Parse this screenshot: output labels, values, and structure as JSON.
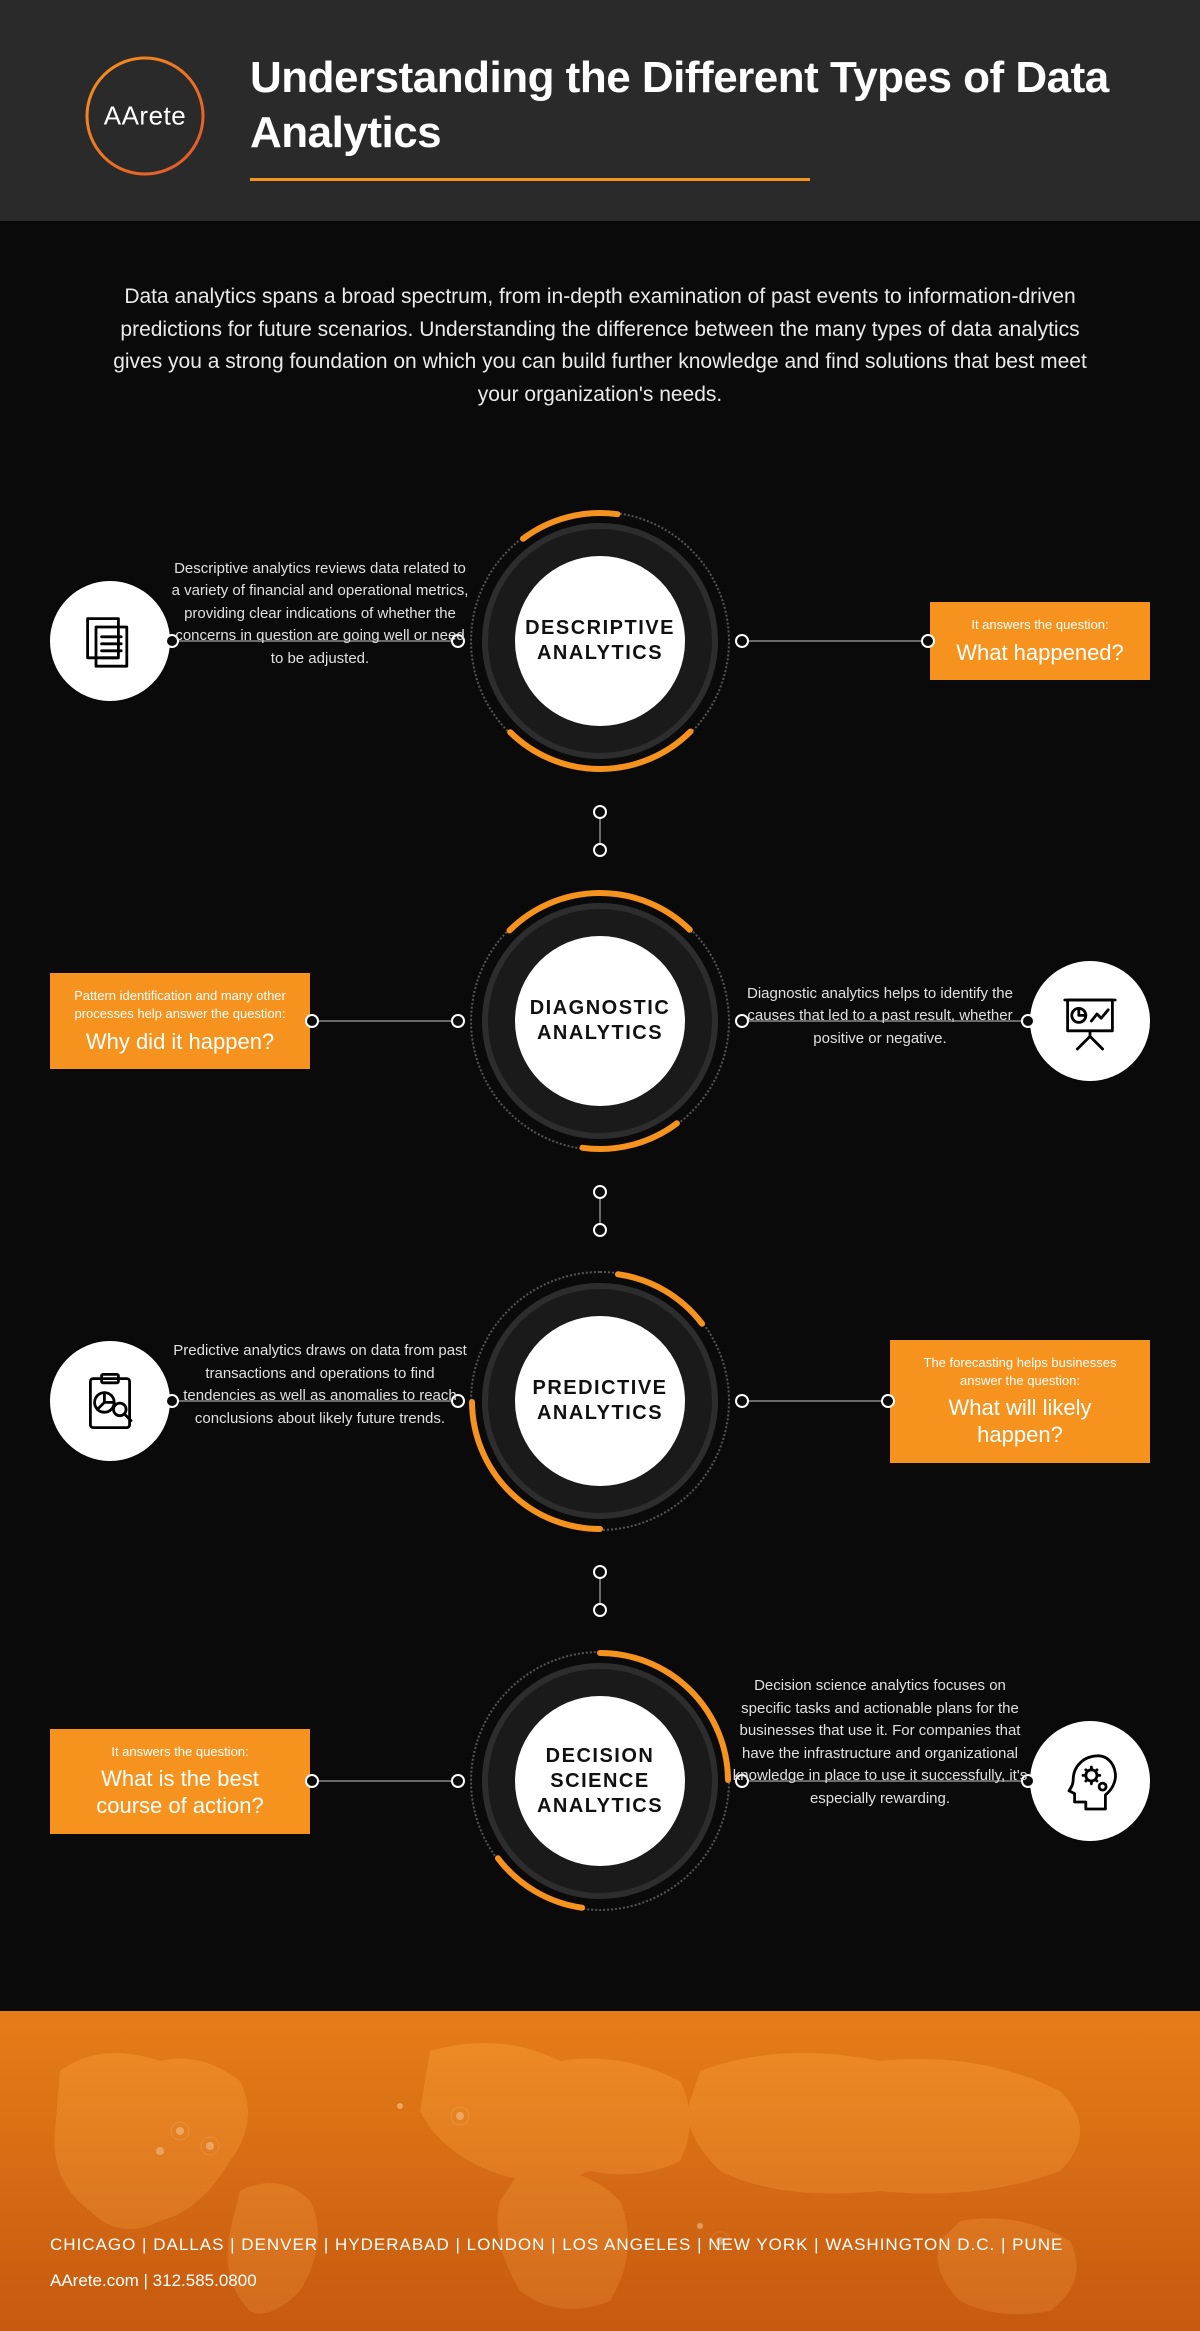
{
  "colors": {
    "header_bg": "#2a2a2a",
    "body_bg": "#0a0a0a",
    "accent_orange": "#f6921e",
    "accent_orange_dark": "#d9731a",
    "white": "#ffffff",
    "ring_dark": "#1a1a1a",
    "ring_border": "#2d2d2d",
    "connector_gray": "#6a6a6a",
    "text_light": "#eaeaea"
  },
  "logo": {
    "text": "AArete"
  },
  "title": "Understanding the Different Types of Data Analytics",
  "intro": "Data analytics spans a broad spectrum, from in-depth examination of past events to information-driven predictions for future scenarios. Understanding the difference between the many types of data analytics gives you a strong foundation on which you can build further knowledge and find solutions that best meet your organization's needs.",
  "nodes": [
    {
      "id": "descriptive",
      "label": "DESCRIPTIVE ANALYTICS",
      "arc_rotation": 45,
      "desc_side": "left",
      "icon_side": "left",
      "question_side": "right",
      "icon": "documents",
      "desc": "Descriptive analytics reviews data related to a variety of financial and operational metrics, providing clear indications of whether the concerns in question are going well or need to be adjusted.",
      "question_lead": "It answers the question:",
      "question_main": "What happened?"
    },
    {
      "id": "diagnostic",
      "label": "DIAGNOSTIC ANALYTICS",
      "arc_rotation": 225,
      "desc_side": "right",
      "icon_side": "right",
      "question_side": "left",
      "icon": "presentation",
      "desc": "Diagnostic analytics helps to identify the causes that led to a past result, whether positive or negative.",
      "question_lead": "Pattern identification and many other processes help answer the question:",
      "question_main": "Why did it happen?"
    },
    {
      "id": "predictive",
      "label": "PREDICTIVE ANALYTICS",
      "arc_rotation": 90,
      "desc_side": "left",
      "icon_side": "left",
      "question_side": "right",
      "icon": "clipboard-chart",
      "desc": "Predictive analytics draws on data from past transactions and operations to find tendencies as well as anomalies to reach conclusions about likely future trends.",
      "question_lead": "The forecasting helps businesses answer the question:",
      "question_main": "What will likely happen?"
    },
    {
      "id": "decision",
      "label": "DECISION SCIENCE ANALYTICS",
      "arc_rotation": 270,
      "desc_side": "right",
      "icon_side": "right",
      "question_side": "left",
      "icon": "head-gears",
      "desc": "Decision science analytics focuses on specific tasks and actionable plans for the businesses that use it. For companies that have the infrastructure and organizational knowledge in place to use it successfully, it's especially rewarding.",
      "question_lead": "It answers the question:",
      "question_main": "What is the best course of action?"
    }
  ],
  "footer": {
    "cities": "CHICAGO  |  DALLAS  | DENVER  |  HYDERABAD  |  LONDON  | LOS ANGELES  | NEW YORK  |  WASHINGTON D.C.  |  PUNE",
    "contact": "AArete.com  |  312.585.0800",
    "gradient_from": "#f6921e",
    "gradient_to": "#c65a10"
  }
}
